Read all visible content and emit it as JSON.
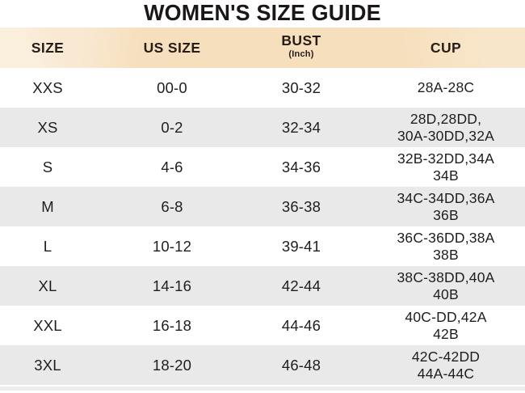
{
  "title": "WOMEN'S SIZE GUIDE",
  "columns": {
    "size": "SIZE",
    "us": "US SIZE",
    "bust": "BUST",
    "bust_sub": "(Inch)",
    "cup": "CUP"
  },
  "rows": [
    {
      "size": "XXS",
      "us": "00-0",
      "bust": "30-32",
      "cup": "28A-28C"
    },
    {
      "size": "XS",
      "us": "0-2",
      "bust": "32-34",
      "cup": "28D,28DD,\n30A-30DD,32A"
    },
    {
      "size": "S",
      "us": "4-6",
      "bust": "34-36",
      "cup": "32B-32DD,34A\n34B"
    },
    {
      "size": "M",
      "us": "6-8",
      "bust": "36-38",
      "cup": "34C-34DD,36A\n36B"
    },
    {
      "size": "L",
      "us": "10-12",
      "bust": "39-41",
      "cup": "36C-36DD,38A\n38B"
    },
    {
      "size": "XL",
      "us": "14-16",
      "bust": "42-44",
      "cup": "38C-38DD,40A\n40B"
    },
    {
      "size": "XXL",
      "us": "16-18",
      "bust": "44-46",
      "cup": "40C-DD,42A\n42B"
    },
    {
      "size": "3XL",
      "us": "18-20",
      "bust": "46-48",
      "cup": "42C-42DD\n44A-44C"
    }
  ],
  "colors": {
    "header_bg": "#f6dfbd",
    "header_bg_light": "#faeedd",
    "alt_row_bg": "#e9e9e9",
    "row_bg": "#ffffff",
    "text": "#1e1e1e",
    "title_text": "#1b1618"
  }
}
